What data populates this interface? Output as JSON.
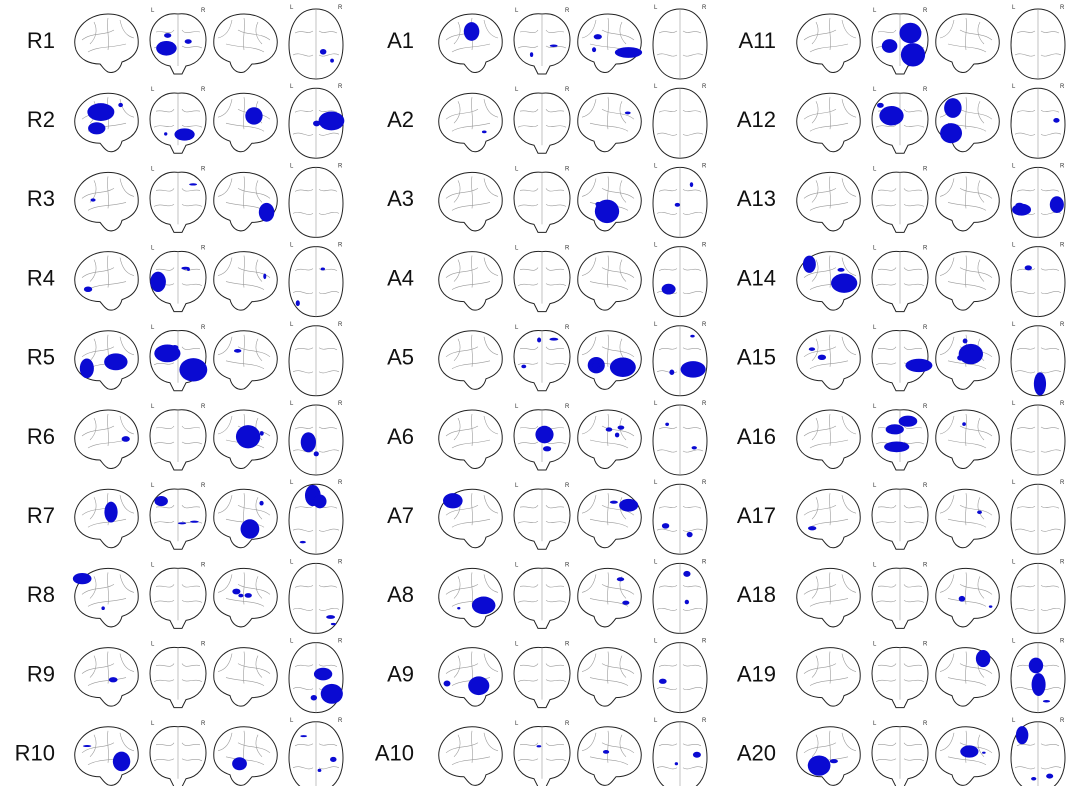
{
  "columns": [
    [
      "R1",
      "R2",
      "R3",
      "R4",
      "R5",
      "R6",
      "R7",
      "R8",
      "R9",
      "R10"
    ],
    [
      "A1",
      "A2",
      "A3",
      "A4",
      "A5",
      "A6",
      "A7",
      "A8",
      "A9",
      "A10"
    ],
    [
      "A11",
      "A12",
      "A13",
      "A14",
      "A15",
      "A16",
      "A17",
      "A18",
      "A19",
      "A20"
    ]
  ],
  "orientation": {
    "left": "L",
    "right": "R"
  }
}
